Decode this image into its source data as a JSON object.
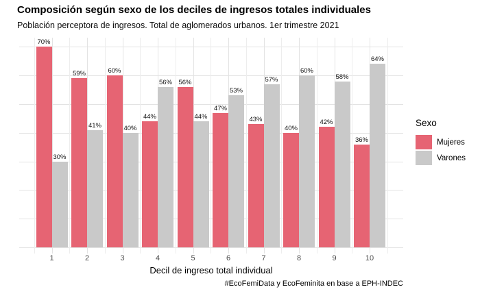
{
  "chart_data": {
    "type": "bar",
    "title": "Composición según sexo de los deciles de ingresos totales individuales",
    "subtitle": "Población perceptora de ingresos. Total de aglomerados urbanos. 1er trimestre 2021",
    "xlabel": "Decil de ingreso total individual",
    "ylabel": "",
    "caption": "#EcoFemiData y EcoFeminita en base a EPH-INDEC",
    "categories": [
      "1",
      "2",
      "3",
      "4",
      "5",
      "6",
      "7",
      "8",
      "9",
      "10"
    ],
    "series": [
      {
        "name": "Mujeres",
        "color": "#E66473",
        "values": [
          70,
          59,
          60,
          44,
          56,
          47,
          43,
          40,
          42,
          36
        ]
      },
      {
        "name": "Varones",
        "color": "#C9C9C9",
        "values": [
          30,
          41,
          40,
          56,
          44,
          53,
          57,
          60,
          58,
          64
        ]
      }
    ],
    "value_suffix": "%",
    "ylim": [
      0,
      73
    ],
    "grid": {
      "y_step": 10,
      "y_max": 70,
      "show_minor_x": true
    },
    "legend_title": "Sexo",
    "legend_position": "right",
    "colors": {
      "background": "#FFFFFF",
      "grid_major": "#E3E3E3",
      "grid_minor": "#EDEDED",
      "tick_text": "#4D4D4D"
    }
  }
}
